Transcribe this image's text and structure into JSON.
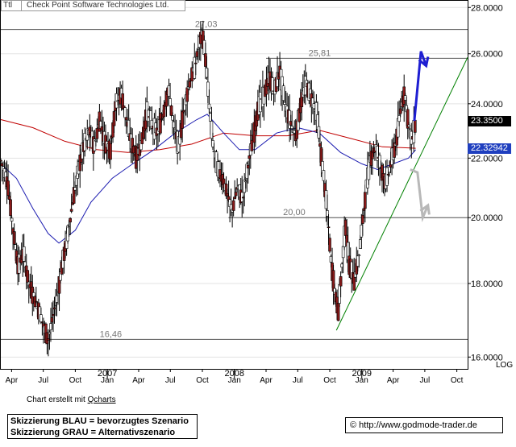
{
  "header": {
    "ticker": "Ttl",
    "company": "Check Point Software Technologies Ltd."
  },
  "credit": {
    "prefix": "Chart erstellt mit ",
    "link": "Qcharts"
  },
  "legend": {
    "blue": "Skizzierung BLAU = bevorzugtes Szenario",
    "gray": "Skizzierung GRAU = Alternativszenario"
  },
  "url": {
    "symbol": "©",
    "text": "http://www.godmode-trader.de"
  },
  "price_tags": [
    {
      "label": "23.3500",
      "value": 23.35,
      "color": "#000000"
    },
    {
      "label": "22.32942",
      "value": 22.32942,
      "color": "#1f3fbf"
    }
  ],
  "chart_data": {
    "type": "candlestick",
    "yscale": "log",
    "y_axis_label": "LOG",
    "ylim": [
      15.7,
      28.3
    ],
    "y_ticks": [
      {
        "value": 16,
        "label": "16.0000"
      },
      {
        "value": 18,
        "label": "18.0000"
      },
      {
        "value": 20,
        "label": "20.0000"
      },
      {
        "value": 22,
        "label": "22.0000"
      },
      {
        "value": 24,
        "label": "24.0000"
      },
      {
        "value": 26,
        "label": "26.0000"
      },
      {
        "value": 28,
        "label": "28.0000"
      }
    ],
    "x_range": [
      "2006-03-01",
      "2009-11-01"
    ],
    "x_ticks": [
      {
        "date": "2006-04-01",
        "label": "Apr"
      },
      {
        "date": "2006-07-01",
        "label": "Jul"
      },
      {
        "date": "2006-10-01",
        "label": "Oct"
      },
      {
        "date": "2007-01-01",
        "label": "Jan",
        "year": "2007"
      },
      {
        "date": "2007-04-01",
        "label": "Apr"
      },
      {
        "date": "2007-07-01",
        "label": "Jul"
      },
      {
        "date": "2007-10-01",
        "label": "Oct"
      },
      {
        "date": "2008-01-01",
        "label": "Jan",
        "year": "2008"
      },
      {
        "date": "2008-04-01",
        "label": "Apr"
      },
      {
        "date": "2008-07-01",
        "label": "Jul"
      },
      {
        "date": "2008-10-01",
        "label": "Oct"
      },
      {
        "date": "2009-01-01",
        "label": "Jan",
        "year": "2009"
      },
      {
        "date": "2009-04-01",
        "label": "Apr"
      },
      {
        "date": "2009-07-01",
        "label": "Jul"
      },
      {
        "date": "2009-10-01",
        "label": "Oct"
      }
    ],
    "horizontal_levels": [
      {
        "value": 27.03,
        "label": "27,03",
        "from": "2006-03-01",
        "to": "2009-11-01",
        "label_at": "2007-09-10"
      },
      {
        "value": 25.81,
        "label": "25,81",
        "from": "2008-04-01",
        "to": "2009-11-01",
        "label_at": "2008-08-01"
      },
      {
        "value": 20.0,
        "label": "20,00",
        "from": "2007-12-15",
        "to": "2009-11-01",
        "label_at": "2008-05-20"
      },
      {
        "value": 16.46,
        "label": "16,46",
        "from": "2006-03-01",
        "to": "2009-11-01",
        "label_at": "2006-12-10"
      }
    ],
    "trendline": {
      "color": "#008000",
      "points": [
        [
          "2008-10-20",
          16.7
        ],
        [
          "2009-11-01",
          25.85
        ]
      ]
    },
    "price_series": [
      [
        "2006-03-01",
        21.9
      ],
      [
        "2006-03-20",
        21.2
      ],
      [
        "2006-04-05",
        19.6
      ],
      [
        "2006-04-20",
        18.5
      ],
      [
        "2006-05-05",
        18.9
      ],
      [
        "2006-05-20",
        18.0
      ],
      [
        "2006-06-05",
        17.6
      ],
      [
        "2006-06-20",
        17.2
      ],
      [
        "2006-07-05",
        16.7
      ],
      [
        "2006-07-15",
        16.45
      ],
      [
        "2006-07-25",
        16.9
      ],
      [
        "2006-08-10",
        17.6
      ],
      [
        "2006-08-25",
        18.6
      ],
      [
        "2006-09-10",
        19.5
      ],
      [
        "2006-09-25",
        20.6
      ],
      [
        "2006-10-10",
        21.6
      ],
      [
        "2006-10-25",
        22.4
      ],
      [
        "2006-11-10",
        23.0
      ],
      [
        "2006-11-25",
        22.4
      ],
      [
        "2006-12-10",
        23.4
      ],
      [
        "2006-12-25",
        22.6
      ],
      [
        "2007-01-10",
        22.3
      ],
      [
        "2007-01-25",
        24.0
      ],
      [
        "2007-02-10",
        24.4
      ],
      [
        "2007-02-25",
        23.4
      ],
      [
        "2007-03-10",
        22.6
      ],
      [
        "2007-03-25",
        22.0
      ],
      [
        "2007-04-10",
        22.6
      ],
      [
        "2007-04-25",
        23.7
      ],
      [
        "2007-05-10",
        23.2
      ],
      [
        "2007-05-25",
        22.9
      ],
      [
        "2007-06-10",
        23.6
      ],
      [
        "2007-06-25",
        24.6
      ],
      [
        "2007-07-10",
        23.2
      ],
      [
        "2007-07-25",
        22.4
      ],
      [
        "2007-08-10",
        23.9
      ],
      [
        "2007-08-25",
        24.8
      ],
      [
        "2007-09-10",
        25.5
      ],
      [
        "2007-09-20",
        26.3
      ],
      [
        "2007-10-01",
        26.9
      ],
      [
        "2007-10-10",
        25.8
      ],
      [
        "2007-10-20",
        24.0
      ],
      [
        "2007-11-01",
        22.4
      ],
      [
        "2007-11-15",
        21.6
      ],
      [
        "2007-12-01",
        21.2
      ],
      [
        "2007-12-15",
        20.6
      ],
      [
        "2007-12-25",
        20.2
      ],
      [
        "2008-01-10",
        21.0
      ],
      [
        "2008-01-25",
        20.6
      ],
      [
        "2008-02-10",
        21.8
      ],
      [
        "2008-02-25",
        22.8
      ],
      [
        "2008-03-10",
        23.9
      ],
      [
        "2008-03-25",
        24.3
      ],
      [
        "2008-04-10",
        25.0
      ],
      [
        "2008-04-25",
        24.5
      ],
      [
        "2008-05-10",
        25.3
      ],
      [
        "2008-05-25",
        24.0
      ],
      [
        "2008-06-10",
        23.3
      ],
      [
        "2008-06-25",
        22.8
      ],
      [
        "2008-07-10",
        24.0
      ],
      [
        "2008-07-25",
        24.8
      ],
      [
        "2008-08-10",
        24.2
      ],
      [
        "2008-08-25",
        23.6
      ],
      [
        "2008-09-05",
        22.2
      ],
      [
        "2008-09-15",
        21.2
      ],
      [
        "2008-09-25",
        20.0
      ],
      [
        "2008-10-05",
        18.6
      ],
      [
        "2008-10-15",
        17.8
      ],
      [
        "2008-10-25",
        17.2
      ],
      [
        "2008-11-05",
        18.5
      ],
      [
        "2008-11-15",
        19.8
      ],
      [
        "2008-11-25",
        18.6
      ],
      [
        "2008-12-10",
        18.1
      ],
      [
        "2008-12-25",
        18.9
      ],
      [
        "2009-01-10",
        20.6
      ],
      [
        "2009-01-25",
        22.0
      ],
      [
        "2009-02-10",
        22.4
      ],
      [
        "2009-02-25",
        21.7
      ],
      [
        "2009-03-10",
        21.1
      ],
      [
        "2009-03-25",
        21.8
      ],
      [
        "2009-04-10",
        22.6
      ],
      [
        "2009-04-25",
        24.0
      ],
      [
        "2009-05-05",
        24.4
      ],
      [
        "2009-05-15",
        23.2
      ],
      [
        "2009-05-25",
        22.6
      ],
      [
        "2009-06-05",
        23.35
      ]
    ],
    "moving_averages": [
      {
        "color": "#c00000",
        "points": [
          [
            "2006-03-01",
            23.4
          ],
          [
            "2006-06-01",
            23.1
          ],
          [
            "2006-09-01",
            22.6
          ],
          [
            "2006-12-01",
            22.3
          ],
          [
            "2007-03-01",
            22.2
          ],
          [
            "2007-06-01",
            22.3
          ],
          [
            "2007-09-01",
            22.5
          ],
          [
            "2007-12-01",
            22.9
          ],
          [
            "2008-03-01",
            22.8
          ],
          [
            "2008-06-01",
            22.8
          ],
          [
            "2008-09-01",
            23.0
          ],
          [
            "2008-12-01",
            22.7
          ],
          [
            "2009-03-01",
            22.4
          ],
          [
            "2009-06-05",
            22.35
          ]
        ]
      },
      {
        "color": "#1c1cb0",
        "points": [
          [
            "2006-03-01",
            21.8
          ],
          [
            "2006-04-15",
            21.3
          ],
          [
            "2006-06-01",
            20.3
          ],
          [
            "2006-07-15",
            19.5
          ],
          [
            "2006-08-15",
            19.2
          ],
          [
            "2006-10-01",
            19.6
          ],
          [
            "2006-11-15",
            20.5
          ],
          [
            "2007-01-15",
            21.3
          ],
          [
            "2007-03-15",
            21.8
          ],
          [
            "2007-05-15",
            22.3
          ],
          [
            "2007-07-15",
            22.9
          ],
          [
            "2007-09-15",
            23.4
          ],
          [
            "2007-10-15",
            23.6
          ],
          [
            "2007-12-01",
            22.9
          ],
          [
            "2008-01-15",
            22.3
          ],
          [
            "2008-03-01",
            22.3
          ],
          [
            "2008-05-01",
            22.9
          ],
          [
            "2008-07-01",
            23.1
          ],
          [
            "2008-09-01",
            22.9
          ],
          [
            "2008-11-01",
            22.2
          ],
          [
            "2009-01-01",
            21.8
          ],
          [
            "2009-02-15",
            21.6
          ],
          [
            "2009-04-01",
            21.8
          ],
          [
            "2009-05-15",
            22.0
          ],
          [
            "2009-06-05",
            22.3
          ]
        ]
      }
    ],
    "scenarios": [
      {
        "name": "BLAU",
        "color": "#1e1ed2",
        "points": [
          [
            "2009-06-01",
            23.35
          ],
          [
            "2009-06-20",
            26.1
          ],
          [
            "2009-07-05",
            25.5
          ]
        ]
      },
      {
        "name": "GRAU",
        "color": "#b8b8b8",
        "points": [
          [
            "2009-05-20",
            21.6
          ],
          [
            "2009-06-10",
            21.5
          ],
          [
            "2009-06-25",
            20.0
          ],
          [
            "2009-07-10",
            20.4
          ]
        ]
      }
    ]
  }
}
